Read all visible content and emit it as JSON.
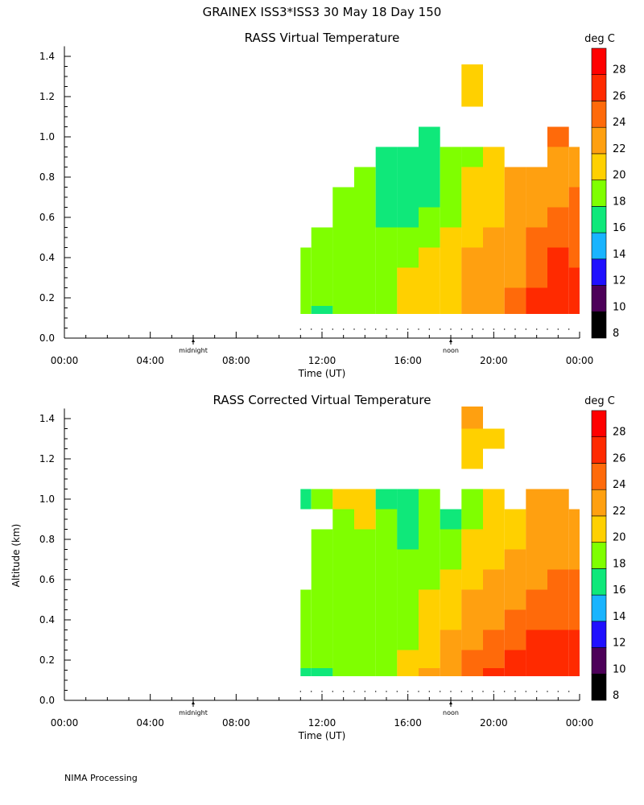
{
  "title": "GRAINEX ISS3*ISS3  30 May 18 Day 150",
  "footer": "NIMA Processing",
  "axes": {
    "ylabel": "Altitude (km)",
    "xlabel": "Time (UT)",
    "x_ticks": [
      "00:00",
      "04:00",
      "08:00",
      "12:00",
      "16:00",
      "20:00",
      "00:00"
    ],
    "y_ticks": [
      "0.0",
      "0.2",
      "0.4",
      "0.6",
      "0.8",
      "1.0",
      "1.2",
      "1.4"
    ],
    "midnight_label": "midnight",
    "noon_label": "noon"
  },
  "colorbar": {
    "unit": "deg C",
    "levels": [
      8,
      10,
      12,
      14,
      16,
      18,
      20,
      22,
      24,
      26,
      28
    ],
    "colors": [
      "#000000",
      "#4d0059",
      "#2010ff",
      "#19b4ff",
      "#0fe87a",
      "#7fff00",
      "#ffd000",
      "#ffa010",
      "#ff6a0a",
      "#ff2a00",
      "#ff0000"
    ]
  },
  "chart_data": [
    {
      "type": "heatmap",
      "title": "RASS Virtual Temperature",
      "xlabel": "Time (UT)",
      "ylabel": "",
      "xlim": [
        0,
        24
      ],
      "ylim": [
        0,
        1.45
      ],
      "unit": "deg C",
      "x": [
        11,
        12,
        13,
        14,
        15,
        16,
        17,
        18,
        19,
        20,
        21,
        22,
        23,
        24
      ],
      "altitudes": [
        0.12,
        0.2,
        0.3,
        0.4,
        0.5,
        0.6,
        0.7,
        0.8,
        0.9,
        1.0,
        1.1,
        1.2,
        1.3
      ],
      "values": [
        [
          18,
          17,
          18,
          18,
          19,
          20,
          20,
          21,
          22,
          22,
          24,
          26,
          27,
          27
        ],
        [
          18,
          18,
          18,
          18,
          19,
          20,
          20,
          21,
          22,
          22,
          24,
          26,
          27,
          27
        ],
        [
          18,
          18,
          18,
          18,
          18,
          20,
          20,
          21,
          22,
          22,
          23,
          25,
          27,
          26
        ],
        [
          18,
          18,
          19,
          18,
          18,
          19,
          20,
          20,
          22,
          22,
          23,
          24,
          26,
          25
        ],
        [
          null,
          18,
          18,
          18,
          18,
          18,
          19,
          20,
          21,
          22,
          23,
          24,
          25,
          25
        ],
        [
          null,
          null,
          18,
          18,
          17,
          17,
          18,
          19,
          20,
          21,
          22,
          23,
          24,
          24
        ],
        [
          null,
          null,
          19,
          18,
          17,
          17,
          17,
          18,
          20,
          21,
          22,
          23,
          23,
          24
        ],
        [
          null,
          null,
          null,
          18,
          17,
          17,
          17,
          18,
          20,
          21,
          22,
          22,
          23,
          23
        ],
        [
          null,
          null,
          null,
          null,
          17,
          17,
          17,
          18,
          19,
          20,
          null,
          null,
          23,
          22
        ],
        [
          null,
          null,
          null,
          null,
          null,
          null,
          17,
          null,
          null,
          null,
          null,
          null,
          24,
          null
        ],
        [
          null,
          null,
          null,
          null,
          null,
          null,
          null,
          null,
          null,
          null,
          null,
          null,
          null,
          null
        ],
        [
          null,
          null,
          null,
          null,
          null,
          null,
          null,
          null,
          20,
          null,
          null,
          null,
          null,
          null
        ],
        [
          null,
          null,
          null,
          null,
          null,
          null,
          null,
          null,
          20,
          null,
          null,
          null,
          null,
          null
        ]
      ]
    },
    {
      "type": "heatmap",
      "title": "RASS Corrected Virtual Temperature",
      "xlabel": "Time (UT)",
      "ylabel": "Altitude (km)",
      "xlim": [
        0,
        24
      ],
      "ylim": [
        0,
        1.45
      ],
      "unit": "deg C",
      "x": [
        11,
        12,
        13,
        14,
        15,
        16,
        17,
        18,
        19,
        20,
        21,
        22,
        23,
        24
      ],
      "altitudes": [
        0.12,
        0.2,
        0.3,
        0.4,
        0.5,
        0.6,
        0.7,
        0.8,
        0.9,
        1.0,
        1.1,
        1.2,
        1.3,
        1.4
      ],
      "values": [
        [
          17,
          17,
          18,
          18,
          19,
          20,
          22,
          23,
          24,
          26,
          27,
          27,
          27,
          27
        ],
        [
          18,
          18,
          18,
          18,
          19,
          20,
          21,
          23,
          24,
          25,
          26,
          27,
          27,
          27
        ],
        [
          18,
          18,
          18,
          18,
          19,
          19,
          21,
          22,
          23,
          24,
          25,
          26,
          26,
          26
        ],
        [
          18,
          18,
          19,
          18,
          18,
          19,
          20,
          21,
          22,
          23,
          24,
          25,
          25,
          25
        ],
        [
          18,
          18,
          18,
          18,
          18,
          19,
          20,
          21,
          22,
          23,
          23,
          24,
          25,
          24
        ],
        [
          null,
          18,
          18,
          18,
          18,
          18,
          19,
          20,
          21,
          22,
          23,
          23,
          24,
          24
        ],
        [
          null,
          18,
          18,
          19,
          18,
          18,
          18,
          19,
          20,
          21,
          22,
          23,
          23,
          23
        ],
        [
          null,
          18,
          19,
          19,
          18,
          17,
          18,
          18,
          20,
          21,
          21,
          22,
          23,
          23
        ],
        [
          null,
          null,
          19,
          20,
          18,
          17,
          18,
          17,
          19,
          20,
          21,
          22,
          22,
          22
        ],
        [
          17,
          18,
          20,
          20,
          17,
          17,
          18,
          null,
          19,
          20,
          null,
          22,
          23,
          null
        ],
        [
          null,
          null,
          null,
          null,
          null,
          null,
          null,
          null,
          null,
          null,
          null,
          null,
          null,
          null
        ],
        [
          null,
          null,
          null,
          null,
          null,
          null,
          null,
          null,
          20,
          null,
          null,
          null,
          null,
          null
        ],
        [
          null,
          null,
          null,
          null,
          null,
          null,
          null,
          null,
          20,
          20,
          null,
          null,
          null,
          null
        ],
        [
          null,
          null,
          null,
          null,
          null,
          null,
          null,
          null,
          22,
          null,
          null,
          null,
          null,
          null
        ]
      ]
    }
  ]
}
